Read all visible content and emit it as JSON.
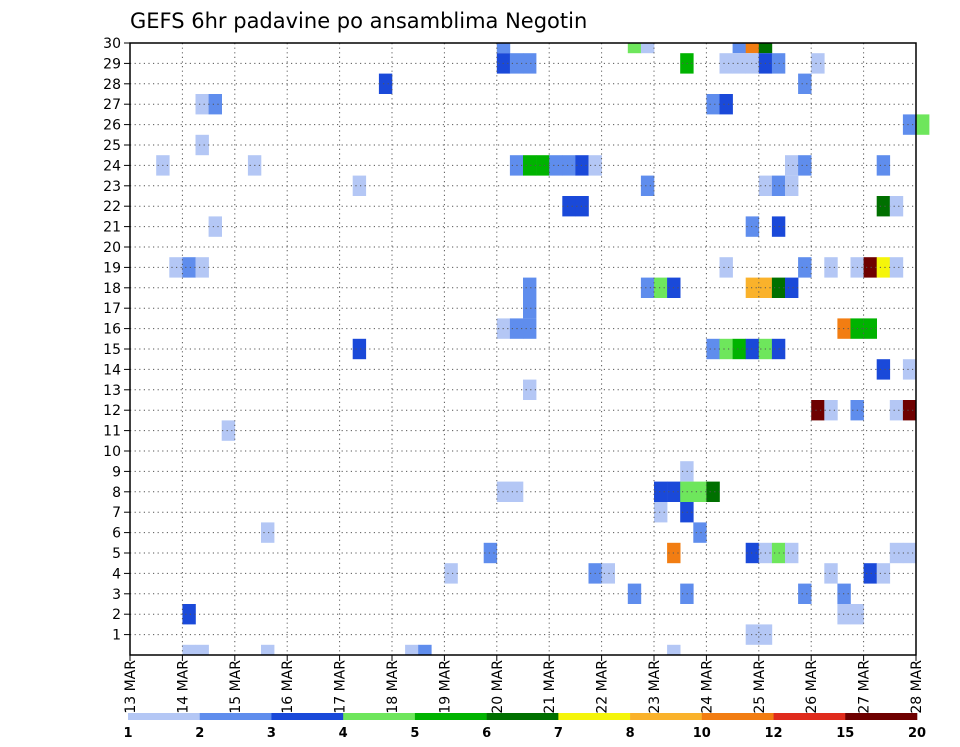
{
  "chart_data": {
    "type": "heatmap",
    "title": "GEFS 6hr padavine po ansamblima Negotin",
    "xlabel": "",
    "ylabel": "",
    "grid": true,
    "y_ticks": [
      "1",
      "2",
      "3",
      "4",
      "5",
      "6",
      "7",
      "8",
      "9",
      "10",
      "11",
      "12",
      "13",
      "14",
      "15",
      "16",
      "17",
      "18",
      "19",
      "20",
      "21",
      "22",
      "23",
      "24",
      "25",
      "26",
      "27",
      "28",
      "29",
      "30"
    ],
    "x_ticks": [
      "13 MAR",
      "14 MAR",
      "15 MAR",
      "16 MAR",
      "17 MAR",
      "18 MAR",
      "19 MAR",
      "20 MAR",
      "21 MAR",
      "22 MAR",
      "23 MAR",
      "24 MAR",
      "25 MAR",
      "26 MAR",
      "27 MAR",
      "28 MAR"
    ],
    "x_range_days": [
      13,
      28
    ],
    "y_range_members": [
      0,
      30
    ],
    "legend": {
      "placement": "bottom",
      "colors": [
        "#b4c7f5",
        "#5f8ded",
        "#1a49d9",
        "#6ee65c",
        "#00b300",
        "#007000",
        "#f5f50a",
        "#fab22b",
        "#f27d12",
        "#e02b1c",
        "#6e0000"
      ],
      "labels": [
        "1",
        "2",
        "3",
        "4",
        "5",
        "6",
        "7",
        "8",
        "10",
        "12",
        "15",
        "20"
      ]
    },
    "cells": [
      {
        "member": 30,
        "day": 20.0,
        "level": 2
      },
      {
        "member": 30,
        "day": 22.5,
        "level": 4
      },
      {
        "member": 30,
        "day": 22.75,
        "level": 1
      },
      {
        "member": 30,
        "day": 24.5,
        "level": 2
      },
      {
        "member": 30,
        "day": 24.75,
        "level": 9
      },
      {
        "member": 30,
        "day": 25.0,
        "level": 6
      },
      {
        "member": 29,
        "day": 20.0,
        "level": 3
      },
      {
        "member": 29,
        "day": 20.25,
        "level": 2
      },
      {
        "member": 29,
        "day": 20.5,
        "level": 2
      },
      {
        "member": 29,
        "day": 23.5,
        "level": 5
      },
      {
        "member": 29,
        "day": 24.25,
        "level": 1
      },
      {
        "member": 29,
        "day": 24.5,
        "level": 1
      },
      {
        "member": 29,
        "day": 24.75,
        "level": 1
      },
      {
        "member": 29,
        "day": 25.0,
        "level": 3
      },
      {
        "member": 29,
        "day": 25.25,
        "level": 2
      },
      {
        "member": 29,
        "day": 26.0,
        "level": 1
      },
      {
        "member": 28,
        "day": 17.75,
        "level": 3
      },
      {
        "member": 28,
        "day": 25.75,
        "level": 2
      },
      {
        "member": 27,
        "day": 14.25,
        "level": 1
      },
      {
        "member": 27,
        "day": 14.5,
        "level": 2
      },
      {
        "member": 27,
        "day": 24.0,
        "level": 2
      },
      {
        "member": 27,
        "day": 24.25,
        "level": 3
      },
      {
        "member": 26,
        "day": 27.75,
        "level": 2
      },
      {
        "member": 26,
        "day": 28.0,
        "level": 4
      },
      {
        "member": 25,
        "day": 14.25,
        "level": 1
      },
      {
        "member": 24,
        "day": 13.5,
        "level": 1
      },
      {
        "member": 24,
        "day": 15.25,
        "level": 1
      },
      {
        "member": 24,
        "day": 20.25,
        "level": 2
      },
      {
        "member": 24,
        "day": 20.5,
        "level": 5
      },
      {
        "member": 24,
        "day": 20.75,
        "level": 5
      },
      {
        "member": 24,
        "day": 21.0,
        "level": 2
      },
      {
        "member": 24,
        "day": 21.25,
        "level": 2
      },
      {
        "member": 24,
        "day": 21.5,
        "level": 3
      },
      {
        "member": 24,
        "day": 21.75,
        "level": 1
      },
      {
        "member": 24,
        "day": 25.5,
        "level": 1
      },
      {
        "member": 24,
        "day": 25.75,
        "level": 2
      },
      {
        "member": 24,
        "day": 27.25,
        "level": 2
      },
      {
        "member": 23,
        "day": 17.25,
        "level": 1
      },
      {
        "member": 23,
        "day": 22.75,
        "level": 2
      },
      {
        "member": 23,
        "day": 25.0,
        "level": 1
      },
      {
        "member": 23,
        "day": 25.25,
        "level": 2
      },
      {
        "member": 23,
        "day": 25.5,
        "level": 1
      },
      {
        "member": 22,
        "day": 21.25,
        "level": 3
      },
      {
        "member": 22,
        "day": 21.5,
        "level": 3
      },
      {
        "member": 22,
        "day": 27.25,
        "level": 6
      },
      {
        "member": 22,
        "day": 27.5,
        "level": 1
      },
      {
        "member": 21,
        "day": 14.5,
        "level": 1
      },
      {
        "member": 21,
        "day": 24.75,
        "level": 2
      },
      {
        "member": 21,
        "day": 25.25,
        "level": 3
      },
      {
        "member": 19,
        "day": 13.75,
        "level": 1
      },
      {
        "member": 19,
        "day": 14.0,
        "level": 2
      },
      {
        "member": 19,
        "day": 14.25,
        "level": 1
      },
      {
        "member": 19,
        "day": 24.25,
        "level": 1
      },
      {
        "member": 19,
        "day": 25.75,
        "level": 2
      },
      {
        "member": 19,
        "day": 26.25,
        "level": 1
      },
      {
        "member": 19,
        "day": 26.75,
        "level": 1
      },
      {
        "member": 19,
        "day": 27.0,
        "level": 11
      },
      {
        "member": 19,
        "day": 27.25,
        "level": 7
      },
      {
        "member": 19,
        "day": 27.5,
        "level": 1
      },
      {
        "member": 18,
        "day": 20.5,
        "level": 2
      },
      {
        "member": 18,
        "day": 22.75,
        "level": 2
      },
      {
        "member": 18,
        "day": 23.0,
        "level": 4
      },
      {
        "member": 18,
        "day": 23.25,
        "level": 3
      },
      {
        "member": 18,
        "day": 24.75,
        "level": 8
      },
      {
        "member": 18,
        "day": 25.0,
        "level": 8
      },
      {
        "member": 18,
        "day": 25.25,
        "level": 6
      },
      {
        "member": 18,
        "day": 25.5,
        "level": 3
      },
      {
        "member": 17,
        "day": 20.5,
        "level": 2
      },
      {
        "member": 16,
        "day": 20.0,
        "level": 1
      },
      {
        "member": 16,
        "day": 20.25,
        "level": 2
      },
      {
        "member": 16,
        "day": 20.5,
        "level": 2
      },
      {
        "member": 16,
        "day": 26.5,
        "level": 9
      },
      {
        "member": 16,
        "day": 26.75,
        "level": 5
      },
      {
        "member": 16,
        "day": 27.0,
        "level": 5
      },
      {
        "member": 15,
        "day": 17.25,
        "level": 3
      },
      {
        "member": 15,
        "day": 24.0,
        "level": 2
      },
      {
        "member": 15,
        "day": 24.25,
        "level": 4
      },
      {
        "member": 15,
        "day": 24.5,
        "level": 5
      },
      {
        "member": 15,
        "day": 24.75,
        "level": 3
      },
      {
        "member": 15,
        "day": 25.0,
        "level": 4
      },
      {
        "member": 15,
        "day": 25.25,
        "level": 3
      },
      {
        "member": 14,
        "day": 27.25,
        "level": 3
      },
      {
        "member": 14,
        "day": 27.75,
        "level": 1
      },
      {
        "member": 13,
        "day": 20.5,
        "level": 1
      },
      {
        "member": 12,
        "day": 26.0,
        "level": 11
      },
      {
        "member": 12,
        "day": 26.25,
        "level": 1
      },
      {
        "member": 12,
        "day": 26.75,
        "level": 2
      },
      {
        "member": 12,
        "day": 27.5,
        "level": 1
      },
      {
        "member": 12,
        "day": 27.75,
        "level": 11
      },
      {
        "member": 11,
        "day": 14.75,
        "level": 1
      },
      {
        "member": 9,
        "day": 23.5,
        "level": 1
      },
      {
        "member": 8,
        "day": 20.0,
        "level": 1
      },
      {
        "member": 8,
        "day": 20.25,
        "level": 1
      },
      {
        "member": 8,
        "day": 23.0,
        "level": 3
      },
      {
        "member": 8,
        "day": 23.25,
        "level": 3
      },
      {
        "member": 8,
        "day": 23.5,
        "level": 4
      },
      {
        "member": 8,
        "day": 23.75,
        "level": 4
      },
      {
        "member": 8,
        "day": 24.0,
        "level": 6
      },
      {
        "member": 7,
        "day": 23.0,
        "level": 1
      },
      {
        "member": 7,
        "day": 23.5,
        "level": 3
      },
      {
        "member": 6,
        "day": 15.5,
        "level": 1
      },
      {
        "member": 6,
        "day": 23.75,
        "level": 2
      },
      {
        "member": 5,
        "day": 19.75,
        "level": 2
      },
      {
        "member": 5,
        "day": 23.25,
        "level": 9
      },
      {
        "member": 5,
        "day": 24.75,
        "level": 3
      },
      {
        "member": 5,
        "day": 25.0,
        "level": 1
      },
      {
        "member": 5,
        "day": 25.25,
        "level": 4
      },
      {
        "member": 5,
        "day": 25.5,
        "level": 1
      },
      {
        "member": 5,
        "day": 27.5,
        "level": 1
      },
      {
        "member": 5,
        "day": 27.75,
        "level": 1
      },
      {
        "member": 4,
        "day": 19.0,
        "level": 1
      },
      {
        "member": 4,
        "day": 21.75,
        "level": 2
      },
      {
        "member": 4,
        "day": 22.0,
        "level": 1
      },
      {
        "member": 4,
        "day": 26.25,
        "level": 1
      },
      {
        "member": 4,
        "day": 27.0,
        "level": 3
      },
      {
        "member": 4,
        "day": 27.25,
        "level": 1
      },
      {
        "member": 3,
        "day": 22.5,
        "level": 2
      },
      {
        "member": 3,
        "day": 23.5,
        "level": 2
      },
      {
        "member": 3,
        "day": 25.75,
        "level": 2
      },
      {
        "member": 3,
        "day": 26.5,
        "level": 2
      },
      {
        "member": 2,
        "day": 14.0,
        "level": 3
      },
      {
        "member": 2,
        "day": 26.5,
        "level": 1
      },
      {
        "member": 2,
        "day": 26.75,
        "level": 1
      },
      {
        "member": 1,
        "day": 24.75,
        "level": 1
      },
      {
        "member": 1,
        "day": 25.0,
        "level": 1
      },
      {
        "member": 0,
        "day": 14.0,
        "level": 1
      },
      {
        "member": 0,
        "day": 14.25,
        "level": 1
      },
      {
        "member": 0,
        "day": 15.5,
        "level": 1
      },
      {
        "member": 0,
        "day": 18.25,
        "level": 1
      },
      {
        "member": 0,
        "day": 18.5,
        "level": 2
      },
      {
        "member": 0,
        "day": 23.25,
        "level": 1
      }
    ]
  }
}
